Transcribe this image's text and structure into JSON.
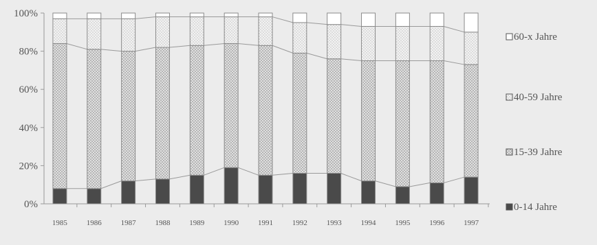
{
  "chart_data": {
    "type": "bar",
    "stacked": "percent",
    "title": "",
    "xlabel": "",
    "ylabel": "",
    "ylim": [
      0,
      100
    ],
    "yticks": [
      "0%",
      "20%",
      "40%",
      "60%",
      "80%",
      "100%"
    ],
    "categories": [
      "1985",
      "1986",
      "1987",
      "1988",
      "1989",
      "1990",
      "1991",
      "1992",
      "1993",
      "1994",
      "1995",
      "1996",
      "1997"
    ],
    "series": [
      {
        "name": "0-14 Jahre",
        "fill": "solid-dark",
        "values": [
          8,
          8,
          12,
          13,
          15,
          19,
          15,
          16,
          16,
          12,
          9,
          11,
          14
        ]
      },
      {
        "name": "15-39 Jahre",
        "fill": "crosshatch",
        "values": [
          76,
          73,
          68,
          69,
          68,
          65,
          68,
          63,
          60,
          63,
          66,
          64,
          59
        ]
      },
      {
        "name": "40-59 Jahre",
        "fill": "dots",
        "values": [
          13,
          16,
          17,
          16,
          15,
          14,
          15,
          16,
          18,
          18,
          18,
          18,
          17
        ]
      },
      {
        "name": "60-x Jahre",
        "fill": "white",
        "values": [
          3,
          3,
          3,
          2,
          2,
          2,
          2,
          5,
          6,
          7,
          7,
          7,
          10
        ]
      }
    ],
    "connecting_lines": true,
    "legend_position": "right",
    "colors": {
      "background": "#ececec",
      "axis": "#999999",
      "dark": "#4a4a4a",
      "border": "#8a8a8a"
    }
  }
}
